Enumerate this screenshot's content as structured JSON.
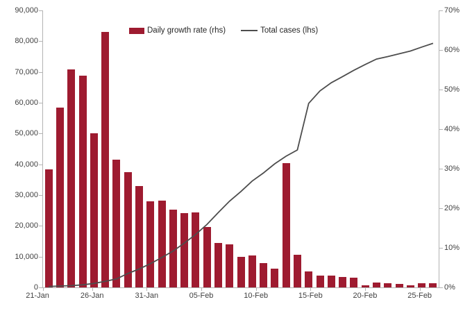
{
  "legend": {
    "bar_label": "Daily growth rate (rhs)",
    "line_label": "Total cases (lhs)"
  },
  "colors": {
    "bar": "#9e1b30",
    "line": "#4d4d4d",
    "axis": "#b3b3b3",
    "text": "#404040",
    "background": "#ffffff"
  },
  "chart_data": {
    "type": "bar+line combo",
    "title": "",
    "grid": false,
    "legend_position": "top-center",
    "categories": [
      "22-Jan",
      "23-Jan",
      "24-Jan",
      "25-Jan",
      "26-Jan",
      "27-Jan",
      "28-Jan",
      "29-Jan",
      "30-Jan",
      "31-Jan",
      "01-Feb",
      "02-Feb",
      "03-Feb",
      "04-Feb",
      "05-Feb",
      "06-Feb",
      "07-Feb",
      "08-Feb",
      "09-Feb",
      "10-Feb",
      "11-Feb",
      "12-Feb",
      "13-Feb",
      "14-Feb",
      "15-Feb",
      "16-Feb",
      "17-Feb",
      "18-Feb",
      "19-Feb",
      "20-Feb",
      "21-Feb",
      "22-Feb",
      "23-Feb",
      "24-Feb",
      "25-Feb"
    ],
    "series": [
      {
        "name": "Daily growth rate (rhs)",
        "type": "bar",
        "axis": "right",
        "unit": "percent",
        "values": [
          29.8,
          45.4,
          55.1,
          53.5,
          38.9,
          64.5,
          32.3,
          29.1,
          25.7,
          21.7,
          22.0,
          19.6,
          18.8,
          19.0,
          15.2,
          11.2,
          10.9,
          7.7,
          8.0,
          6.1,
          4.7,
          31.4,
          8.3,
          4.1,
          3.0,
          3.0,
          2.7,
          2.4,
          0.5,
          1.2,
          1.1,
          0.9,
          0.5,
          1.0,
          1.1
        ]
      },
      {
        "name": "Total cases (lhs)",
        "type": "line",
        "axis": "left",
        "unit": "cases",
        "values": [
          291,
          440,
          571,
          830,
          1287,
          1975,
          2744,
          4515,
          5974,
          7711,
          9692,
          11791,
          14380,
          17205,
          20438,
          24324,
          28018,
          31161,
          34546,
          37198,
          40171,
          42638,
          44653,
          59804,
          63851,
          66492,
          68500,
          70548,
          72436,
          74185,
          75000,
          75900,
          76800,
          78100,
          79300
        ]
      }
    ],
    "left_axis": {
      "min": 0,
      "max": 90000,
      "step": 10000,
      "labels": [
        "0",
        "10,000",
        "20,000",
        "30,000",
        "40,000",
        "50,000",
        "60,000",
        "70,000",
        "80,000",
        "90,000"
      ]
    },
    "right_axis": {
      "min": 0,
      "max": 70,
      "step": 10,
      "labels": [
        "0%",
        "10%",
        "20%",
        "30%",
        "40%",
        "50%",
        "60%",
        "70%"
      ]
    },
    "x_tick_labels": [
      "21-Jan",
      "26-Jan",
      "31-Jan",
      "05-Feb",
      "10-Feb",
      "15-Feb",
      "20-Feb",
      "25-Feb"
    ]
  }
}
